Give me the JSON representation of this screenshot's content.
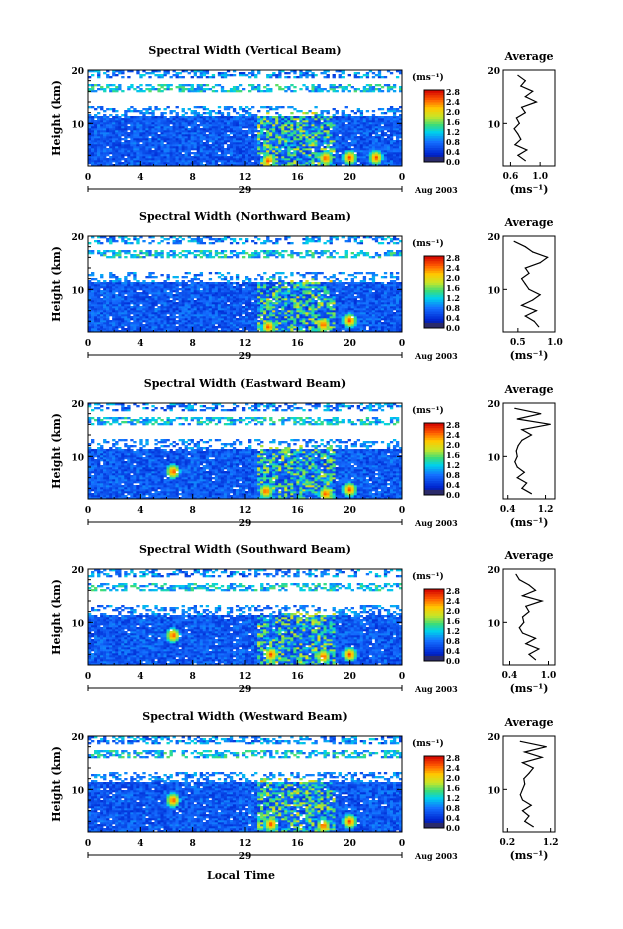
{
  "figure": {
    "xlabel": "Local Time",
    "ylabel": "Height (km)",
    "date_suffix": "Aug 2003",
    "unit": "(ms⁻¹)",
    "average_title": "Average",
    "average_xlabel": "(ms⁻¹)",
    "colorbar_ticks": [
      "2.8",
      "2.4",
      "2.0",
      "1.6",
      "1.2",
      "0.8",
      "0.4",
      "0.0"
    ]
  },
  "chart_data": [
    {
      "type": "heatmap",
      "title": "Spectral Width (Vertical Beam)",
      "xticks": [
        "0",
        "4",
        "8",
        "12",
        "16",
        "20",
        "0"
      ],
      "xlim": [
        0,
        24
      ],
      "day_label": "29",
      "yticks": [
        "20",
        "10"
      ],
      "ylim": [
        2,
        20
      ],
      "colorbar_range": [
        0,
        3.0
      ],
      "hot_spots": [
        {
          "t": 13.8,
          "h": 3.0
        },
        {
          "t": 18.2,
          "h": 3.5
        },
        {
          "t": 20.0,
          "h": 3.6
        },
        {
          "t": 22.0,
          "h": 3.6
        }
      ],
      "average": {
        "xticks": [
          "0.6",
          "1.0"
        ],
        "xlim": [
          0.5,
          1.2
        ],
        "heights": [
          3,
          4,
          5,
          6,
          7,
          8,
          9,
          10,
          11,
          12,
          13,
          14,
          15,
          16,
          17,
          18,
          19
        ],
        "values": [
          0.8,
          0.7,
          0.82,
          0.66,
          0.74,
          0.7,
          0.65,
          0.72,
          0.68,
          0.8,
          0.75,
          0.95,
          0.8,
          0.9,
          0.74,
          0.8,
          0.7
        ]
      }
    },
    {
      "type": "heatmap",
      "title": "Spectral Width (Northward Beam)",
      "xticks": [
        "0",
        "4",
        "8",
        "12",
        "16",
        "20",
        "0"
      ],
      "xlim": [
        0,
        24
      ],
      "day_label": "29",
      "yticks": [
        "20",
        "10"
      ],
      "ylim": [
        2,
        20
      ],
      "colorbar_range": [
        0,
        3.0
      ],
      "hot_spots": [
        {
          "t": 13.8,
          "h": 3.0
        },
        {
          "t": 18.0,
          "h": 3.4
        },
        {
          "t": 20.0,
          "h": 4.2
        }
      ],
      "average": {
        "xticks": [
          "0.5",
          "1.0"
        ],
        "xlim": [
          0.3,
          1.0
        ],
        "heights": [
          3,
          4,
          5,
          6,
          7,
          8,
          9,
          10,
          11,
          12,
          13,
          14,
          15,
          16,
          17,
          18,
          19
        ],
        "values": [
          0.78,
          0.72,
          0.6,
          0.75,
          0.55,
          0.7,
          0.8,
          0.65,
          0.6,
          0.55,
          0.65,
          0.6,
          0.8,
          0.9,
          0.7,
          0.6,
          0.45
        ]
      }
    },
    {
      "type": "heatmap",
      "title": "Spectral Width (Eastward Beam)",
      "xticks": [
        "0",
        "4",
        "8",
        "12",
        "16",
        "20",
        "0"
      ],
      "xlim": [
        0,
        24
      ],
      "day_label": "29",
      "yticks": [
        "20",
        "10"
      ],
      "ylim": [
        2,
        20
      ],
      "colorbar_range": [
        0,
        3.0
      ],
      "hot_spots": [
        {
          "t": 13.6,
          "h": 3.5
        },
        {
          "t": 18.2,
          "h": 3.0
        },
        {
          "t": 20.0,
          "h": 3.8
        },
        {
          "t": 6.5,
          "h": 7.2
        }
      ],
      "average": {
        "xticks": [
          "0.4",
          "1.2"
        ],
        "xlim": [
          0.3,
          1.4
        ],
        "heights": [
          3,
          4,
          5,
          6,
          7,
          8,
          9,
          10,
          11,
          12,
          13,
          14,
          15,
          16,
          17,
          18,
          19
        ],
        "values": [
          0.9,
          0.7,
          0.8,
          0.6,
          0.75,
          0.6,
          0.55,
          0.6,
          0.58,
          0.62,
          0.7,
          0.9,
          0.7,
          1.3,
          0.6,
          1.1,
          0.55
        ]
      }
    },
    {
      "type": "heatmap",
      "title": "Spectral Width (Southward Beam)",
      "xticks": [
        "0",
        "4",
        "8",
        "12",
        "16",
        "20",
        "0"
      ],
      "xlim": [
        0,
        24
      ],
      "day_label": "29",
      "yticks": [
        "20",
        "10"
      ],
      "ylim": [
        2,
        20
      ],
      "colorbar_range": [
        0,
        3.0
      ],
      "hot_spots": [
        {
          "t": 14.0,
          "h": 4.0
        },
        {
          "t": 18.0,
          "h": 3.6
        },
        {
          "t": 20.0,
          "h": 4.0
        },
        {
          "t": 6.5,
          "h": 7.6
        }
      ],
      "average": {
        "xticks": [
          "0.4",
          "1.0"
        ],
        "xlim": [
          0.3,
          1.1
        ],
        "heights": [
          3,
          4,
          5,
          6,
          7,
          8,
          9,
          10,
          11,
          12,
          13,
          14,
          15,
          16,
          17,
          18,
          19
        ],
        "values": [
          0.8,
          0.7,
          0.85,
          0.65,
          0.8,
          0.6,
          0.55,
          0.62,
          0.6,
          0.7,
          0.65,
          0.9,
          0.6,
          0.8,
          0.7,
          0.55,
          0.5
        ]
      }
    },
    {
      "type": "heatmap",
      "title": "Spectral Width (Westward Beam)",
      "xticks": [
        "0",
        "4",
        "8",
        "12",
        "16",
        "20",
        "0"
      ],
      "xlim": [
        0,
        24
      ],
      "day_label": "29",
      "yticks": [
        "20",
        "10"
      ],
      "ylim": [
        2,
        20
      ],
      "colorbar_range": [
        0,
        3.0
      ],
      "hot_spots": [
        {
          "t": 14.0,
          "h": 3.5
        },
        {
          "t": 18.0,
          "h": 3.2
        },
        {
          "t": 20.0,
          "h": 4.0
        },
        {
          "t": 6.5,
          "h": 8.0
        }
      ],
      "average": {
        "xticks": [
          "0.2",
          "1.2"
        ],
        "xlim": [
          0.1,
          1.3
        ],
        "heights": [
          3,
          4,
          5,
          6,
          7,
          8,
          9,
          10,
          11,
          12,
          13,
          14,
          15,
          16,
          17,
          18,
          19
        ],
        "values": [
          0.8,
          0.6,
          0.7,
          0.55,
          0.75,
          0.55,
          0.5,
          0.55,
          0.6,
          0.58,
          0.7,
          0.8,
          0.55,
          1.0,
          0.6,
          1.1,
          0.5
        ]
      }
    }
  ]
}
